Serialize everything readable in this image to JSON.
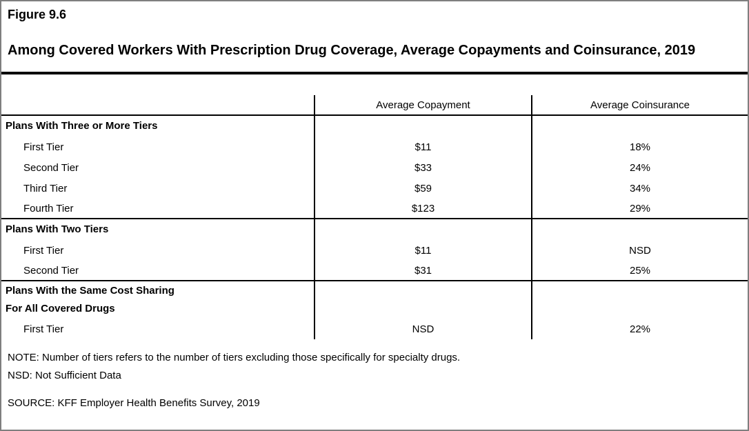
{
  "header": {
    "figure_label": "Figure 9.6",
    "title": "Among Covered Workers With Prescription Drug Coverage, Average Copayments and Coinsurance, 2019"
  },
  "table": {
    "columns": [
      "",
      "Average Copayment",
      "Average Coinsurance"
    ],
    "sections": [
      {
        "header": "Plans With Three or More Tiers",
        "rows": [
          [
            "First Tier",
            "$11",
            "18%"
          ],
          [
            "Second Tier",
            "$33",
            "24%"
          ],
          [
            "Third Tier",
            "$59",
            "34%"
          ],
          [
            "Fourth Tier",
            "$123",
            "29%"
          ]
        ]
      },
      {
        "header": "Plans With Two Tiers",
        "rows": [
          [
            "First Tier",
            "$11",
            "NSD"
          ],
          [
            "Second Tier",
            "$31",
            "25%"
          ]
        ]
      },
      {
        "header": "Plans With the Same Cost Sharing\nFor All Covered Drugs",
        "rows": [
          [
            "First Tier",
            "NSD",
            "22%"
          ]
        ]
      }
    ]
  },
  "footer": {
    "note": "NOTE: Number of tiers refers to the number of tiers excluding those specifically for specialty drugs.",
    "nsd": "NSD: Not Sufficient Data",
    "source": "SOURCE: KFF Employer Health Benefits Survey, 2019"
  },
  "colors": {
    "outer_border": "#7f7f7f",
    "rule_and_grid": "#000000",
    "text": "#000000",
    "background": "#ffffff"
  }
}
